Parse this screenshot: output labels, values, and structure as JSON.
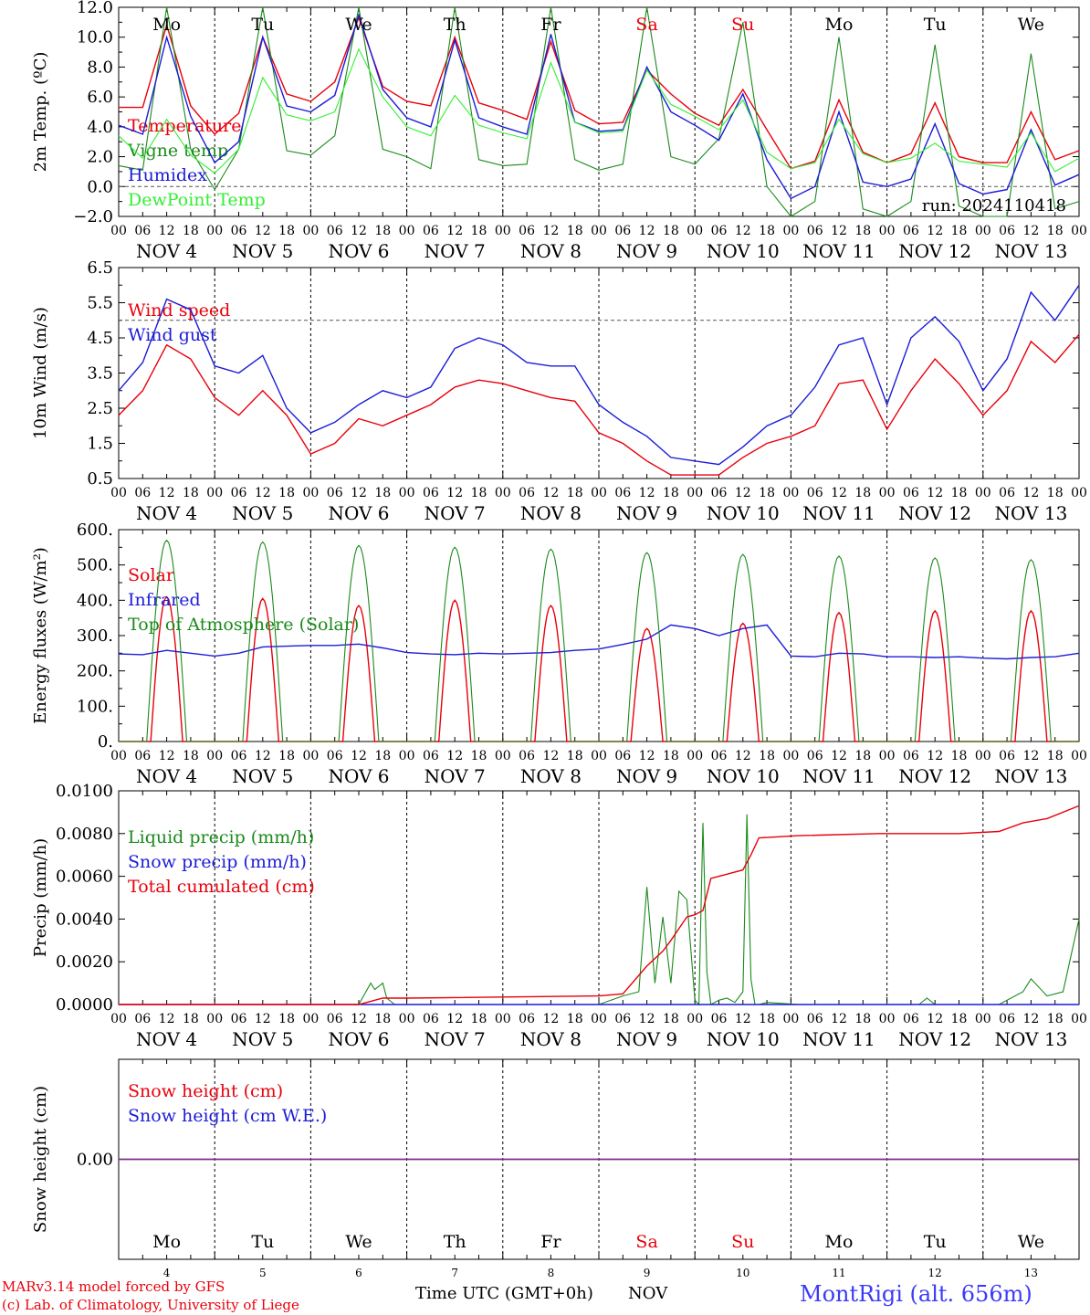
{
  "colors": {
    "red": "#e8000b",
    "darkgreen": "#1a8a1a",
    "blue": "#1c1cd8",
    "lightgreen": "#33ee33",
    "purple": "#7b2a8b",
    "station": "#3b3bf7"
  },
  "days": [
    "Mo",
    "Tu",
    "We",
    "Th",
    "Fr",
    "Sa",
    "Su",
    "Mo",
    "Tu",
    "We"
  ],
  "weekend_days": [
    5,
    6
  ],
  "date_labels": [
    "NOV  4",
    "NOV  5",
    "NOV  6",
    "NOV  7",
    "NOV  8",
    "NOV  9",
    "NOV 10",
    "NOV 11",
    "NOV 12",
    "NOV 13"
  ],
  "hour_labels": [
    "00",
    "06",
    "12",
    "18"
  ],
  "bottom_day_numbers": [
    "4",
    "5",
    "6",
    "7",
    "8",
    "9",
    "10",
    "11",
    "12",
    "13"
  ],
  "footer": {
    "model": "MARv3.14 model forced by GFS",
    "lab": "(c) Lab. of Climatology, University of Liege",
    "xlabel": "Time UTC (GMT+0h)",
    "month": "NOV",
    "station": "MontRigi (alt. 656m)"
  },
  "chart_data": [
    {
      "type": "line",
      "ylabel": "2m Temp. (ºC)",
      "ylim": [
        -2,
        12
      ],
      "yticks": [
        "−2.0",
        "0.0",
        "2.0",
        "4.0",
        "6.0",
        "8.0",
        "10.0",
        "12.0"
      ],
      "hline": 0,
      "annotation": "run: 2024110418",
      "series": [
        {
          "name": "Temperature",
          "color": "red",
          "x": [
            0,
            6,
            12,
            18,
            24,
            30,
            36,
            42,
            48,
            54,
            60,
            66,
            72,
            78,
            84,
            90,
            96,
            102,
            108,
            114,
            120,
            126,
            132,
            138,
            144,
            150,
            156,
            162,
            168,
            174,
            180,
            186,
            192,
            198,
            204,
            210,
            216,
            222,
            228,
            234,
            240
          ],
          "y": [
            5.3,
            5.3,
            10.8,
            5.4,
            3.5,
            4.9,
            10.0,
            6.2,
            5.7,
            7.0,
            11.3,
            6.7,
            5.7,
            5.4,
            10.0,
            5.6,
            5.1,
            4.5,
            9.7,
            5.1,
            4.2,
            4.3,
            7.8,
            6.2,
            4.9,
            4.1,
            6.5,
            3.8,
            1.2,
            1.7,
            5.8,
            2.3,
            1.6,
            2.2,
            5.6,
            2.0,
            1.6,
            1.6,
            5.0,
            1.8,
            2.4
          ]
        },
        {
          "name": "Vigne temp",
          "color": "darkgreen",
          "x": [
            0,
            6,
            12,
            18,
            24,
            30,
            36,
            42,
            48,
            54,
            60,
            66,
            72,
            78,
            84,
            90,
            96,
            102,
            108,
            114,
            120,
            126,
            132,
            138,
            144,
            150,
            156,
            162,
            168,
            174,
            180,
            186,
            192,
            198,
            204,
            210,
            216,
            222,
            228,
            234,
            240
          ],
          "y": [
            1.4,
            1.1,
            12.0,
            2.5,
            -0.2,
            2.5,
            12.0,
            2.4,
            2.1,
            3.4,
            12.0,
            2.5,
            2.0,
            1.2,
            12.0,
            1.8,
            1.4,
            1.5,
            12.0,
            1.8,
            1.1,
            1.5,
            12.0,
            2.0,
            1.5,
            3.2,
            11.0,
            0.0,
            -2.0,
            -1.0,
            10.0,
            -1.5,
            -2.0,
            -1.0,
            9.5,
            -1.3,
            -2.0,
            -2.0,
            8.9,
            -1.5,
            -1.0
          ]
        },
        {
          "name": "Humidex",
          "color": "blue",
          "x": [
            0,
            6,
            12,
            18,
            24,
            30,
            36,
            42,
            48,
            54,
            60,
            66,
            72,
            78,
            84,
            90,
            96,
            102,
            108,
            114,
            120,
            126,
            132,
            138,
            144,
            150,
            156,
            162,
            168,
            174,
            180,
            186,
            192,
            198,
            204,
            210,
            216,
            222,
            228,
            234,
            240
          ],
          "y": [
            4.1,
            3.5,
            10.0,
            4.7,
            1.6,
            3.0,
            10.0,
            5.4,
            5.0,
            6.1,
            11.5,
            6.5,
            4.6,
            4.0,
            9.8,
            4.6,
            4.0,
            3.5,
            10.2,
            4.3,
            3.7,
            3.8,
            8.0,
            5.0,
            4.1,
            3.1,
            6.2,
            1.8,
            -0.8,
            0.0,
            5.0,
            0.3,
            0.0,
            0.5,
            4.2,
            0.2,
            -0.5,
            -0.2,
            3.8,
            0.1,
            0.8
          ]
        },
        {
          "name": "DewPoint Temp",
          "color": "lightgreen",
          "x": [
            0,
            6,
            12,
            18,
            24,
            30,
            36,
            42,
            48,
            54,
            60,
            66,
            72,
            78,
            84,
            90,
            96,
            102,
            108,
            114,
            120,
            126,
            132,
            138,
            144,
            150,
            156,
            162,
            168,
            174,
            180,
            186,
            192,
            198,
            204,
            210,
            216,
            222,
            228,
            234,
            240
          ],
          "y": [
            3.4,
            1.9,
            4.5,
            2.1,
            0.9,
            2.5,
            7.3,
            4.8,
            4.4,
            5.0,
            9.2,
            6.0,
            4.0,
            3.4,
            6.1,
            4.1,
            3.6,
            3.2,
            8.3,
            4.3,
            3.6,
            3.7,
            7.8,
            5.5,
            4.7,
            3.8,
            5.8,
            2.3,
            1.2,
            1.6,
            4.5,
            2.2,
            1.6,
            1.9,
            2.9,
            1.7,
            1.5,
            1.3,
            3.6,
            1.0,
            1.9
          ]
        }
      ]
    },
    {
      "type": "line",
      "ylabel": "10m Wind (m/s)",
      "ylim": [
        0.5,
        6.5
      ],
      "yticks": [
        "0.5",
        "1.5",
        "2.5",
        "3.5",
        "4.5",
        "5.5",
        "6.5"
      ],
      "hline": 5.0,
      "series": [
        {
          "name": "Wind speed",
          "color": "red",
          "x": [
            0,
            6,
            12,
            18,
            24,
            30,
            36,
            42,
            48,
            54,
            60,
            66,
            72,
            78,
            84,
            90,
            96,
            102,
            108,
            114,
            120,
            126,
            132,
            138,
            144,
            150,
            156,
            162,
            168,
            174,
            180,
            186,
            192,
            198,
            204,
            210,
            216,
            222,
            228,
            234,
            240
          ],
          "y": [
            2.3,
            3.0,
            4.3,
            3.9,
            2.8,
            2.3,
            3.0,
            2.3,
            1.2,
            1.5,
            2.2,
            2.0,
            2.3,
            2.6,
            3.1,
            3.3,
            3.2,
            3.0,
            2.8,
            2.7,
            1.8,
            1.5,
            1.0,
            0.6,
            0.6,
            0.6,
            1.1,
            1.5,
            1.7,
            2.0,
            3.2,
            3.3,
            1.9,
            3.0,
            3.9,
            3.2,
            2.3,
            3.0,
            4.4,
            3.8,
            4.6
          ]
        },
        {
          "name": "Wind gust",
          "color": "blue",
          "x": [
            0,
            6,
            12,
            18,
            24,
            30,
            36,
            42,
            48,
            54,
            60,
            66,
            72,
            78,
            84,
            90,
            96,
            102,
            108,
            114,
            120,
            126,
            132,
            138,
            144,
            150,
            156,
            162,
            168,
            174,
            180,
            186,
            192,
            198,
            204,
            210,
            216,
            222,
            228,
            234,
            240
          ],
          "y": [
            3.0,
            3.8,
            5.6,
            5.3,
            3.7,
            3.5,
            4.0,
            2.5,
            1.8,
            2.1,
            2.6,
            3.0,
            2.8,
            3.1,
            4.2,
            4.5,
            4.3,
            3.8,
            3.7,
            3.7,
            2.6,
            2.1,
            1.7,
            1.1,
            1.0,
            0.9,
            1.4,
            2.0,
            2.3,
            3.1,
            4.3,
            4.5,
            2.6,
            4.5,
            5.1,
            4.4,
            3.0,
            3.9,
            5.8,
            5.0,
            6.0
          ]
        }
      ]
    },
    {
      "type": "line",
      "ylabel": "Energy fluxes (W/m²)",
      "ylim": [
        0,
        600
      ],
      "yticks": [
        "0.",
        "100.",
        "200.",
        "300.",
        "400.",
        "500.",
        "600."
      ],
      "series": [
        {
          "name": "Solar",
          "color": "red",
          "solar_peaks": [
            410,
            405,
            385,
            400,
            385,
            320,
            335,
            365,
            370,
            370
          ]
        },
        {
          "name": "Infrared",
          "color": "blue",
          "x": [
            0,
            6,
            12,
            18,
            24,
            30,
            36,
            42,
            48,
            54,
            60,
            66,
            72,
            78,
            84,
            90,
            96,
            102,
            108,
            114,
            120,
            126,
            132,
            138,
            144,
            150,
            156,
            162,
            168,
            174,
            180,
            186,
            192,
            198,
            204,
            210,
            216,
            222,
            228,
            234,
            240
          ],
          "y": [
            248,
            246,
            258,
            250,
            242,
            250,
            268,
            270,
            272,
            272,
            276,
            265,
            252,
            248,
            246,
            250,
            248,
            250,
            252,
            258,
            262,
            275,
            290,
            330,
            320,
            300,
            320,
            330,
            242,
            240,
            250,
            248,
            240,
            240,
            238,
            240,
            236,
            234,
            238,
            240,
            250
          ]
        },
        {
          "name": "Top of Atmosphere (Solar)",
          "color": "darkgreen",
          "toa_peaks": [
            570,
            565,
            555,
            550,
            545,
            535,
            530,
            525,
            520,
            515
          ]
        }
      ]
    },
    {
      "type": "line",
      "ylabel": "Precip (mm/h)",
      "ylim": [
        0,
        0.01
      ],
      "yticks": [
        "0.0000",
        "0.0020",
        "0.0040",
        "0.0060",
        "0.0080",
        "0.0100"
      ],
      "series": [
        {
          "name": "Liquid precip (mm/h)",
          "color": "darkgreen",
          "x": [
            0,
            60,
            63,
            64,
            66,
            67,
            69,
            72,
            120,
            126,
            130,
            132,
            134,
            136,
            138,
            140,
            142,
            144,
            145,
            146,
            147,
            148,
            150,
            152,
            154,
            156,
            157,
            158,
            159,
            160,
            162,
            170,
            190,
            200,
            202,
            204,
            220,
            226,
            228,
            232,
            236,
            240
          ],
          "y": [
            0,
            0,
            0.001,
            0.0007,
            0.001,
            0.0003,
            0,
            0,
            0,
            0.0004,
            0.0006,
            0.0055,
            0.001,
            0.0041,
            0.001,
            0.0053,
            0.0049,
            0.0002,
            0.0,
            0.0085,
            0.0015,
            0.0,
            0.0002,
            0.0003,
            0.0001,
            0.0006,
            0.0089,
            0.0012,
            0.0,
            0.0,
            0.0001,
            0,
            0,
            0,
            0.0003,
            0,
            0,
            0.0006,
            0.0012,
            0.0004,
            0.0006,
            0.004
          ]
        },
        {
          "name": "Snow precip (mm/h)",
          "color": "blue",
          "x": [
            0,
            240
          ],
          "y": [
            0,
            0
          ]
        },
        {
          "name": "Total cumulated (cm)",
          "color": "red",
          "x": [
            0,
            60,
            62,
            66,
            72,
            120,
            126,
            132,
            136,
            138,
            142,
            144,
            146,
            148,
            150,
            152,
            156,
            158,
            160,
            170,
            190,
            210,
            220,
            226,
            232,
            240
          ],
          "y": [
            0,
            0,
            0.0001,
            0.0003,
            0.0003,
            0.0004,
            0.0005,
            0.0018,
            0.0025,
            0.003,
            0.0041,
            0.0042,
            0.0044,
            0.0059,
            0.006,
            0.0061,
            0.0063,
            0.007,
            0.0078,
            0.0079,
            0.008,
            0.008,
            0.0081,
            0.0085,
            0.0087,
            0.0093
          ]
        }
      ]
    },
    {
      "type": "line",
      "ylabel": "Snow height (cm)",
      "ylim": [
        -1,
        1
      ],
      "yticks": [
        "0.00"
      ],
      "series": [
        {
          "name": "Snow height (cm)",
          "color": "red",
          "x": [
            0,
            240
          ],
          "y": [
            0,
            0
          ]
        },
        {
          "name": "Snow height (cm W.E.)",
          "color": "blue",
          "x": [
            0,
            240
          ],
          "y": [
            0,
            0
          ]
        }
      ]
    }
  ]
}
